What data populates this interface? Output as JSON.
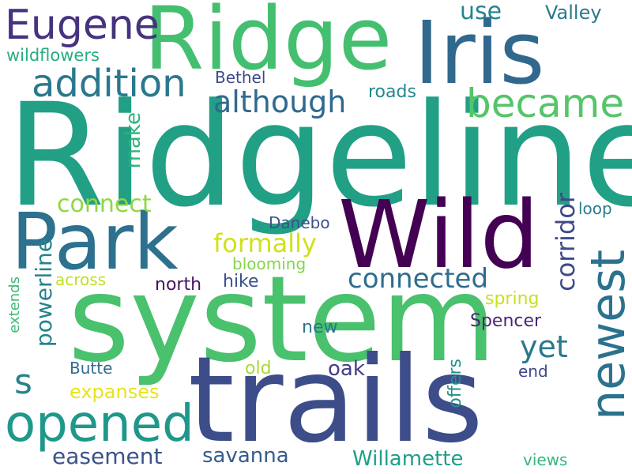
{
  "words": [
    {
      "text": "Ridgeline",
      "color": "#21a085"
    },
    {
      "text": "system",
      "color": "#4ac16d"
    },
    {
      "text": "trails",
      "color": "#3d4d8a"
    },
    {
      "text": "Ridge",
      "color": "#44bf70"
    },
    {
      "text": "Iris",
      "color": "#31688e"
    },
    {
      "text": "Wild",
      "color": "#440154"
    },
    {
      "text": "Park",
      "color": "#2d718e"
    },
    {
      "text": "newest",
      "color": "#2c728e"
    },
    {
      "text": "opened",
      "color": "#1f988b"
    },
    {
      "text": "became",
      "color": "#54c568"
    },
    {
      "text": "Eugene",
      "color": "#46327e"
    },
    {
      "text": "addition",
      "color": "#2a788e"
    },
    {
      "text": "although",
      "color": "#30698e"
    },
    {
      "text": "corridor",
      "color": "#3e4a89"
    },
    {
      "text": "connected",
      "color": "#2f6c8e"
    },
    {
      "text": "yet",
      "color": "#2a788e"
    },
    {
      "text": "s",
      "color": "#26828e"
    },
    {
      "text": "formally",
      "color": "#d0e11c"
    },
    {
      "text": "connect",
      "color": "#8fd744"
    },
    {
      "text": "make",
      "color": "#2eb37c"
    },
    {
      "text": "powerline",
      "color": "#25838e"
    },
    {
      "text": "easement",
      "color": "#3b528b"
    },
    {
      "text": "savanna",
      "color": "#365c8d"
    },
    {
      "text": "Willamette",
      "color": "#1f9e89"
    },
    {
      "text": "expanses",
      "color": "#e7e419"
    },
    {
      "text": "oak",
      "color": "#433e85"
    },
    {
      "text": "Spencer",
      "color": "#482576"
    },
    {
      "text": "spring",
      "color": "#c8e020"
    },
    {
      "text": "use",
      "color": "#26828e"
    },
    {
      "text": "Valley",
      "color": "#2a788e"
    },
    {
      "text": "wildflowers",
      "color": "#27ad81"
    },
    {
      "text": "Bethel",
      "color": "#3e4989"
    },
    {
      "text": "roads",
      "color": "#23888e"
    },
    {
      "text": "Danebo",
      "color": "#3b528b"
    },
    {
      "text": "loop",
      "color": "#287c8e"
    },
    {
      "text": "blooming",
      "color": "#86d549"
    },
    {
      "text": "across",
      "color": "#c2df23"
    },
    {
      "text": "north",
      "color": "#471164"
    },
    {
      "text": "hike",
      "color": "#3b528b"
    },
    {
      "text": "extends",
      "color": "#3bbb75"
    },
    {
      "text": "new",
      "color": "#2a768e"
    },
    {
      "text": "Butte",
      "color": "#306a8e"
    },
    {
      "text": "old",
      "color": "#a8db34"
    },
    {
      "text": "offers",
      "color": "#21918c"
    },
    {
      "text": "end",
      "color": "#3f4788"
    },
    {
      "text": "views",
      "color": "#35b779"
    }
  ]
}
